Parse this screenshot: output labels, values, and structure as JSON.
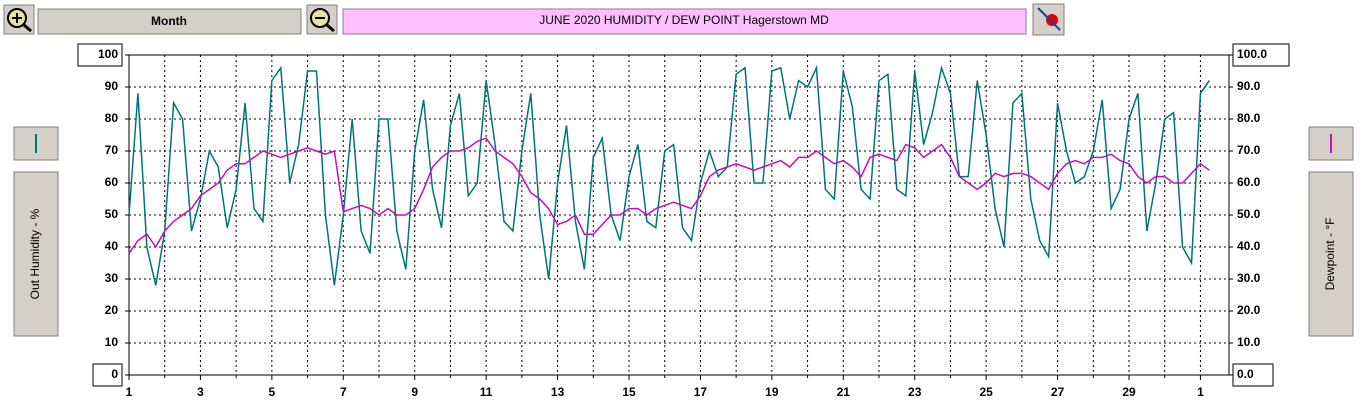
{
  "toolbar": {
    "period": "Month"
  },
  "chart_data": {
    "type": "line",
    "title": "JUNE  2020   HUMIDITY / DEW POINT  Hagerstown MD",
    "ylabel": "Out Humidity - %",
    "y2label": "Dewpoint - °F",
    "x": [
      1,
      1.25,
      1.5,
      1.75,
      2,
      2.25,
      2.5,
      2.75,
      3,
      3.25,
      3.5,
      3.75,
      4,
      4.25,
      4.5,
      4.75,
      5,
      5.25,
      5.5,
      5.75,
      6,
      6.25,
      6.5,
      6.75,
      7,
      7.25,
      7.5,
      7.75,
      8,
      8.25,
      8.5,
      8.75,
      9,
      9.25,
      9.5,
      9.75,
      10,
      10.25,
      10.5,
      10.75,
      11,
      11.25,
      11.5,
      11.75,
      12,
      12.25,
      12.5,
      12.75,
      13,
      13.25,
      13.5,
      13.75,
      14,
      14.25,
      14.5,
      14.75,
      15,
      15.25,
      15.5,
      15.75,
      16,
      16.25,
      16.5,
      16.75,
      17,
      17.25,
      17.5,
      17.75,
      18,
      18.25,
      18.5,
      18.75,
      19,
      19.25,
      19.5,
      19.75,
      20,
      20.25,
      20.5,
      20.75,
      21,
      21.25,
      21.5,
      21.75,
      22,
      22.25,
      22.5,
      22.75,
      23,
      23.25,
      23.5,
      23.75,
      24,
      24.25,
      24.5,
      24.75,
      25,
      25.25,
      25.5,
      25.75,
      26,
      26.25,
      26.5,
      26.75,
      27,
      27.25,
      27.5,
      27.75,
      28,
      28.25,
      28.5,
      28.75,
      29,
      29.25,
      29.5,
      29.75,
      30,
      30.25,
      30.5,
      30.75,
      31,
      31.25
    ],
    "series": [
      {
        "color": "#007575",
        "axis": "y",
        "values": [
          50,
          88,
          40,
          28,
          45,
          85,
          80,
          45,
          55,
          70,
          65,
          46,
          58,
          85,
          52,
          48,
          92,
          96,
          60,
          72,
          95,
          95,
          50,
          28,
          50,
          80,
          45,
          38,
          80,
          80,
          45,
          33,
          70,
          86,
          58,
          46,
          78,
          88,
          56,
          60,
          92,
          72,
          48,
          45,
          70,
          88,
          50,
          30,
          60,
          78,
          48,
          33,
          68,
          74,
          50,
          42,
          62,
          72,
          48,
          46,
          70,
          72,
          46,
          42,
          60,
          70,
          62,
          65,
          94,
          96,
          60,
          60,
          95,
          96,
          80,
          92,
          90,
          96,
          58,
          55,
          95,
          84,
          58,
          55,
          92,
          94,
          58,
          56,
          95,
          72,
          82,
          96,
          88,
          62,
          62,
          92,
          75,
          52,
          40,
          85,
          88,
          55,
          42,
          37,
          85,
          70,
          60,
          62,
          70,
          86,
          52,
          58,
          80,
          88,
          45,
          60,
          80,
          82,
          40,
          35,
          88,
          92
        ]
      },
      {
        "color": "#c010c0",
        "axis": "y2",
        "values": [
          38,
          42,
          44,
          40,
          45,
          48,
          50,
          52,
          56,
          58,
          60,
          64,
          66,
          66,
          68,
          70,
          69,
          68,
          69,
          70,
          71,
          70,
          69,
          70,
          51,
          52,
          53,
          52,
          50,
          52,
          50,
          50,
          52,
          58,
          65,
          68,
          70,
          70,
          71,
          73,
          74,
          70,
          68,
          66,
          62,
          57,
          55,
          52,
          47,
          48,
          50,
          44,
          44,
          47,
          50,
          50,
          52,
          52,
          50,
          52,
          53,
          54,
          53,
          52,
          56,
          62,
          64,
          65,
          66,
          65,
          64,
          65,
          66,
          67,
          65,
          68,
          68,
          70,
          68,
          66,
          67,
          65,
          62,
          68,
          69,
          68,
          67,
          72,
          71,
          68,
          70,
          72,
          68,
          62,
          60,
          58,
          60,
          63,
          62,
          63,
          63,
          62,
          60,
          58,
          63,
          66,
          67,
          66,
          68,
          68,
          69,
          67,
          66,
          62,
          60,
          62,
          62,
          60,
          60,
          63,
          66,
          64
        ]
      }
    ],
    "xlim": [
      1,
      31.8
    ],
    "xticks": [
      1,
      3,
      5,
      7,
      9,
      11,
      13,
      15,
      17,
      19,
      21,
      23,
      25,
      27,
      29,
      {
        "value": 31,
        "label": "1"
      }
    ],
    "x_minor_ticks": [
      2,
      4,
      6,
      8,
      10,
      12,
      14,
      16,
      18,
      20,
      22,
      24,
      26,
      28,
      30
    ],
    "ylim": [
      0,
      100
    ],
    "yticks": [
      0,
      10,
      20,
      30,
      40,
      50,
      60,
      70,
      80,
      90,
      100
    ],
    "y2lim": [
      0,
      100
    ],
    "y2ticks": [
      {
        "value": 0,
        "label": "0.0"
      },
      {
        "value": 10,
        "label": "10.0"
      },
      {
        "value": 20,
        "label": "20.0"
      },
      {
        "value": 30,
        "label": "30.0"
      },
      {
        "value": 40,
        "label": "40.0"
      },
      {
        "value": 50,
        "label": "50.0"
      },
      {
        "value": 60,
        "label": "60.0"
      },
      {
        "value": 70,
        "label": "70.0"
      },
      {
        "value": 80,
        "label": "80.0"
      },
      {
        "value": 90,
        "label": "90.0"
      },
      {
        "value": 100,
        "label": "100.0"
      }
    ],
    "grid": true
  }
}
